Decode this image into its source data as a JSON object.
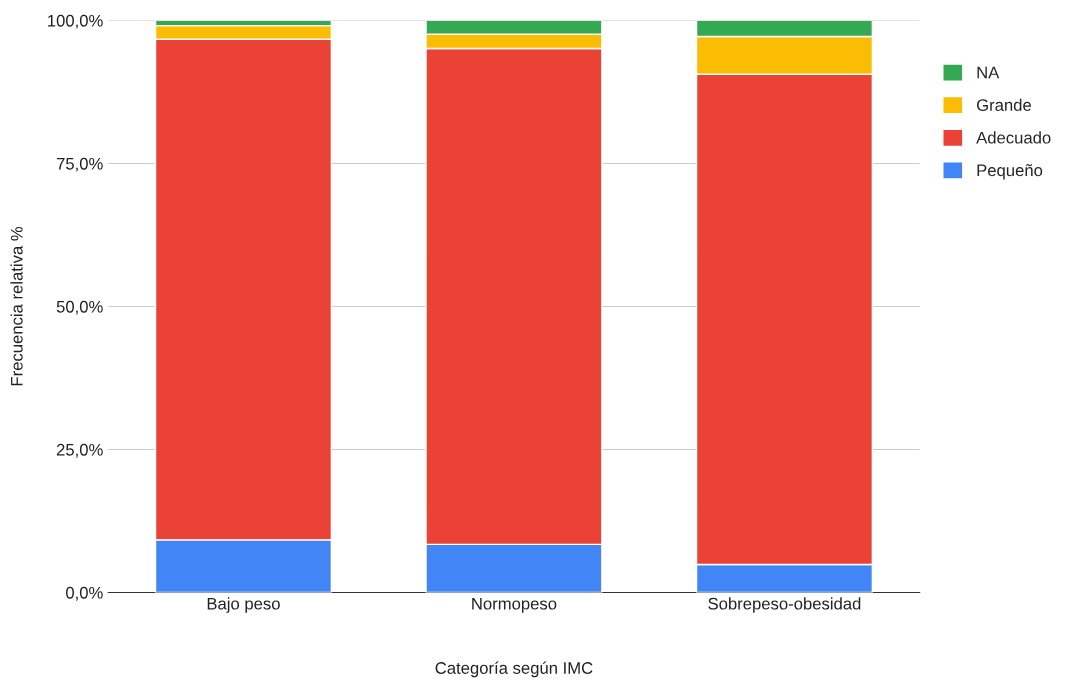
{
  "chart_data": {
    "type": "bar",
    "stacked": true,
    "xlabel": "Categoría según IMC",
    "ylabel": "Frecuencia relativa %",
    "categories": [
      "Bajo peso",
      "Normopeso",
      "Sobrepeso-obesidad"
    ],
    "series": [
      {
        "name": "Pequeño",
        "color": "#4285f4",
        "values": [
          9.2,
          8.4,
          4.9
        ]
      },
      {
        "name": "Adecuado",
        "color": "#ea4335",
        "values": [
          87.5,
          86.7,
          85.7
        ]
      },
      {
        "name": "Grande",
        "color": "#fbbc04",
        "values": [
          2.4,
          2.5,
          6.6
        ]
      },
      {
        "name": "NA",
        "color": "#34a853",
        "values": [
          0.9,
          2.4,
          2.8
        ]
      }
    ],
    "ylim": [
      0,
      100
    ],
    "yticks": [
      {
        "value": 0,
        "label": "0,0%"
      },
      {
        "value": 25,
        "label": "25,0%"
      },
      {
        "value": 50,
        "label": "50,0%"
      },
      {
        "value": 75,
        "label": "75,0%"
      },
      {
        "value": 100,
        "label": "100,0%"
      }
    ],
    "grid": "y",
    "legend": "right"
  }
}
